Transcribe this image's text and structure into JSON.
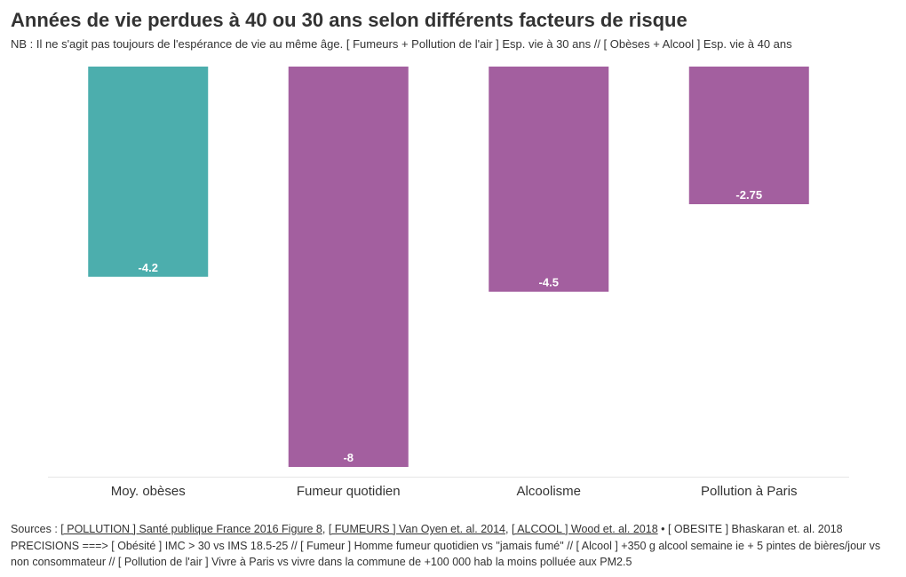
{
  "title": "Années de vie perdues à 40 ou 30 ans selon différents facteurs de risque",
  "subtitle": "NB : Il ne s'agit pas toujours de l'espérance de vie au même âge. [ Fumeurs + Pollution de l'air ] Esp. vie à 30 ans // [ Obèses + Alcool ] Esp. vie à 40 ans",
  "chart_data": {
    "type": "bar",
    "categories": [
      "Moy. obèses",
      "Fumeur quotidien",
      "Alcoolisme",
      "Pollution à Paris"
    ],
    "values": [
      -4.2,
      -8,
      -4.5,
      -2.75
    ],
    "value_labels": [
      "-4.2",
      "-8",
      "-4.5",
      "-2.75"
    ],
    "ylim": [
      -8,
      0
    ],
    "colors": [
      "#4caead",
      "#a35f9f",
      "#a35f9f",
      "#a35f9f"
    ],
    "label_color": "#ffffff",
    "baseline_color": "#e6e6e6",
    "grid": false,
    "legend": "none"
  },
  "footer": {
    "sources_prefix": "Sources : ",
    "source_pollution": "[ POLLUTION ] Santé publique France 2016 Figure 8",
    "sep1": ", ",
    "source_fumeurs": "[ FUMEURS ] Van Oyen et. al. 2014",
    "sep2": ", ",
    "source_alcool": "[ ALCOOL ] Wood et. al. 2018",
    "source_obesite": " • [ OBESITE ] Bhaskaran et. al. 2018",
    "precisions": "PRECISIONS ===> [ Obésité ] IMC > 30 vs IMS 18.5-25 // [ Fumeur ] Homme fumeur quotidien vs \"jamais fumé\" // [ Alcool ] +350 g alcool semaine ie + 5 pintes de bières/jour vs non consommateur // [ Pollution de l'air ] Vivre à Paris vs vivre dans la commune de +100 000 hab la moins polluée aux PM2.5"
  }
}
